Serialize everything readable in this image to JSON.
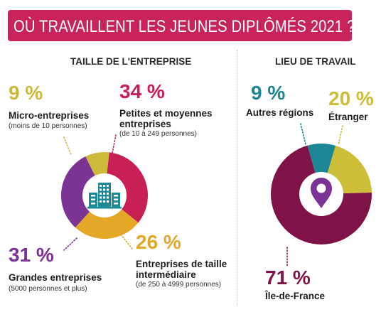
{
  "banner": {
    "title": "OÙ TRAVAILLENT LES JEUNES DIPLÔMÉS 2021 ?"
  },
  "colors": {
    "banner": "#c8235b",
    "micro": "#cdb93a",
    "pme": "#c81f55",
    "eti": "#e4a727",
    "grandes": "#7b3394",
    "autres_regions": "#1c8694",
    "etranger": "#cdbe39",
    "idf": "#7f1347",
    "center_circle": "#ffffff",
    "building_icon": "#1b8a95",
    "pin_icon": "#7b3394"
  },
  "chart_data": [
    {
      "type": "pie",
      "title": "TAILLE DE L'ENTREPRISE",
      "style": "donut",
      "center_icon": "building-icon",
      "slices": [
        {
          "key": "micro",
          "value": 9,
          "pct_label": "9 %",
          "label": "Micro-entreprises",
          "sub": "(moins de 10 personnes)"
        },
        {
          "key": "pme",
          "value": 34,
          "pct_label": "34 %",
          "label": "Petites et moyennes entreprises",
          "sub": "(de 10 à 249 personnes)"
        },
        {
          "key": "eti",
          "value": 26,
          "pct_label": "26 %",
          "label": "Entreprises de taille intermédiaire",
          "sub": "(de 250 à 4999 personnes)"
        },
        {
          "key": "grandes",
          "value": 31,
          "pct_label": "31 %",
          "label": "Grandes entreprises",
          "sub": "(5000 personnes et plus)"
        }
      ]
    },
    {
      "type": "pie",
      "title": "LIEU DE TRAVAIL",
      "style": "pie",
      "center_icon": "location-pin-icon",
      "slices": [
        {
          "key": "autres_regions",
          "value": 9,
          "pct_label": "9 %",
          "label": "Autres régions"
        },
        {
          "key": "etranger",
          "value": 20,
          "pct_label": "20 %",
          "label": "Étranger"
        },
        {
          "key": "idf",
          "value": 71,
          "pct_label": "71 %",
          "label": "Île-de-France"
        }
      ]
    }
  ]
}
